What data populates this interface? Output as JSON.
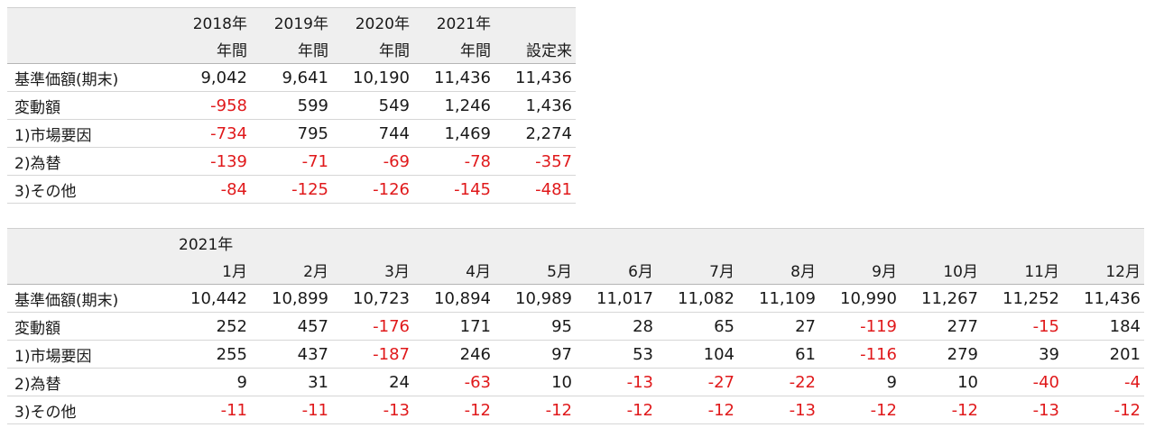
{
  "annual": {
    "header_years": [
      "2018年",
      "2019年",
      "2020年",
      "2021年",
      ""
    ],
    "header_periods": [
      "年間",
      "年間",
      "年間",
      "年間",
      "設定来"
    ],
    "rows": [
      {
        "label": "基準価額(期末)",
        "values": [
          "9,042",
          "9,641",
          "10,190",
          "11,436",
          "11,436"
        ]
      },
      {
        "label": "変動額",
        "values": [
          "-958",
          "599",
          "549",
          "1,246",
          "1,436"
        ]
      },
      {
        "label": "1)市場要因",
        "values": [
          "-734",
          "795",
          "744",
          "1,469",
          "2,274"
        ]
      },
      {
        "label": "2)為替",
        "values": [
          "-139",
          "-71",
          "-69",
          "-78",
          "-357"
        ]
      },
      {
        "label": "3)その他",
        "values": [
          "-84",
          "-125",
          "-126",
          "-145",
          "-481"
        ]
      }
    ]
  },
  "monthly": {
    "year": "2021年",
    "months": [
      "1月",
      "2月",
      "3月",
      "4月",
      "5月",
      "6月",
      "7月",
      "8月",
      "9月",
      "10月",
      "11月",
      "12月"
    ],
    "rows": [
      {
        "label": "基準価額(期末)",
        "values": [
          "10,442",
          "10,899",
          "10,723",
          "10,894",
          "10,989",
          "11,017",
          "11,082",
          "11,109",
          "10,990",
          "11,267",
          "11,252",
          "11,436"
        ]
      },
      {
        "label": "変動額",
        "values": [
          "252",
          "457",
          "-176",
          "171",
          "95",
          "28",
          "65",
          "27",
          "-119",
          "277",
          "-15",
          "184"
        ]
      },
      {
        "label": "1)市場要因",
        "values": [
          "255",
          "437",
          "-187",
          "246",
          "97",
          "53",
          "104",
          "61",
          "-116",
          "279",
          "39",
          "201"
        ]
      },
      {
        "label": "2)為替",
        "values": [
          "9",
          "31",
          "24",
          "-63",
          "10",
          "-13",
          "-27",
          "-22",
          "9",
          "10",
          "-40",
          "-4"
        ]
      },
      {
        "label": "3)その他",
        "values": [
          "-11",
          "-11",
          "-13",
          "-12",
          "-12",
          "-12",
          "-12",
          "-13",
          "-12",
          "-12",
          "-13",
          "-12"
        ]
      }
    ]
  },
  "colors": {
    "negative": "#e0191b",
    "header_bg": "#efefef",
    "text": "#1a1a1a"
  }
}
